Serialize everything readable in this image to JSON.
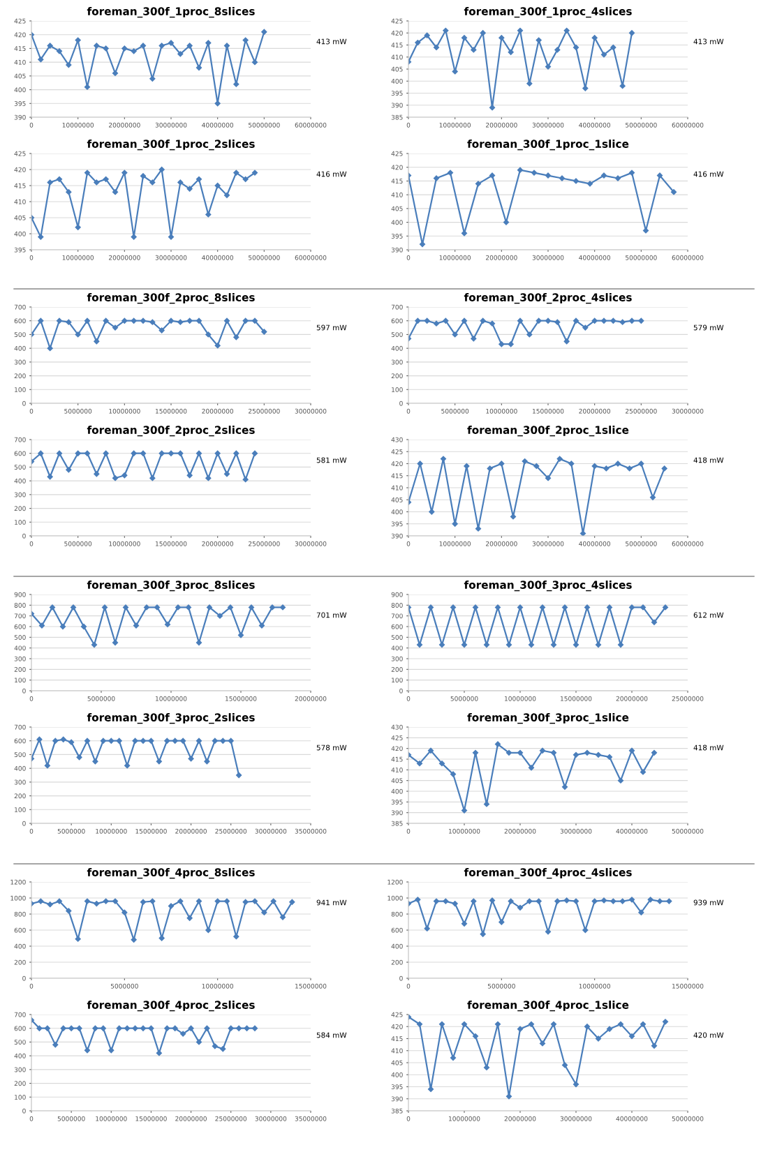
{
  "chart_data": [
    {
      "type": "line",
      "title": "foreman_300f_1proc_8slices",
      "annotations": [
        "413 mW"
      ],
      "xlim": [
        0,
        60000000
      ],
      "xticks": [
        0,
        10000000,
        20000000,
        30000000,
        40000000,
        50000000,
        60000000
      ],
      "ylim": [
        390,
        425
      ],
      "yticks": [
        390,
        395,
        400,
        405,
        410,
        415,
        420,
        425
      ],
      "grid": "y",
      "marker": "diamond",
      "color": "#4a7ebb",
      "x": [
        0,
        2000000,
        4000000,
        6000000,
        8000000,
        10000000,
        12000000,
        14000000,
        16000000,
        18000000,
        20000000,
        22000000,
        24000000,
        26000000,
        28000000,
        30000000,
        32000000,
        34000000,
        36000000,
        38000000,
        40000000,
        42000000,
        44000000,
        46000000,
        48000000,
        50000000
      ],
      "values": [
        420,
        411,
        416,
        414,
        409,
        418,
        401,
        416,
        415,
        406,
        415,
        414,
        416,
        404,
        416,
        417,
        413,
        416,
        408,
        417,
        395,
        416,
        402,
        418,
        410,
        421
      ]
    },
    {
      "type": "line",
      "title": "foreman_300f_1proc_4slices",
      "annotations": [
        "413 mW"
      ],
      "xlim": [
        0,
        60000000
      ],
      "xticks": [
        0,
        10000000,
        20000000,
        30000000,
        40000000,
        50000000,
        60000000
      ],
      "ylim": [
        385,
        425
      ],
      "yticks": [
        385,
        390,
        395,
        400,
        405,
        410,
        415,
        420,
        425
      ],
      "grid": "y",
      "marker": "diamond",
      "color": "#4a7ebb",
      "x": [
        0,
        2000000,
        4000000,
        6000000,
        8000000,
        10000000,
        12000000,
        14000000,
        16000000,
        18000000,
        20000000,
        22000000,
        24000000,
        26000000,
        28000000,
        30000000,
        32000000,
        34000000,
        36000000,
        38000000,
        40000000,
        42000000,
        44000000,
        46000000,
        48000000
      ],
      "values": [
        408,
        416,
        419,
        414,
        421,
        404,
        418,
        413,
        420,
        389,
        418,
        412,
        421,
        399,
        417,
        406,
        413,
        421,
        414,
        397,
        418,
        411,
        414,
        398,
        420
      ]
    },
    {
      "type": "line",
      "title": "foreman_300f_1proc_2slices",
      "annotations": [
        "416 mW"
      ],
      "xlim": [
        0,
        60000000
      ],
      "xticks": [
        0,
        10000000,
        20000000,
        30000000,
        40000000,
        50000000,
        60000000
      ],
      "ylim": [
        395,
        425
      ],
      "yticks": [
        395,
        400,
        405,
        410,
        415,
        420,
        425
      ],
      "grid": "y",
      "marker": "diamond",
      "color": "#4a7ebb",
      "x": [
        0,
        2000000,
        4000000,
        6000000,
        8000000,
        10000000,
        12000000,
        14000000,
        16000000,
        18000000,
        20000000,
        22000000,
        24000000,
        26000000,
        28000000,
        30000000,
        32000000,
        34000000,
        36000000,
        38000000,
        40000000,
        42000000,
        44000000,
        46000000,
        48000000
      ],
      "values": [
        405,
        399,
        416,
        417,
        413,
        402,
        419,
        416,
        417,
        413,
        419,
        399,
        418,
        416,
        420,
        399,
        416,
        414,
        417,
        406,
        415,
        412,
        419,
        417,
        419
      ]
    },
    {
      "type": "line",
      "title": "foreman_300f_1proc_1slice",
      "annotations": [
        "416 mW"
      ],
      "xlim": [
        0,
        60000000
      ],
      "xticks": [
        0,
        10000000,
        20000000,
        30000000,
        40000000,
        50000000,
        60000000
      ],
      "ylim": [
        390,
        425
      ],
      "yticks": [
        390,
        395,
        400,
        405,
        410,
        415,
        420,
        425
      ],
      "grid": "y",
      "marker": "diamond",
      "color": "#4a7ebb",
      "x": [
        0,
        3000000,
        6000000,
        9000000,
        12000000,
        15000000,
        18000000,
        21000000,
        24000000,
        27000000,
        30000000,
        33000000,
        36000000,
        39000000,
        42000000,
        45000000,
        48000000,
        51000000,
        54000000,
        57000000
      ],
      "values": [
        417,
        392,
        416,
        418,
        396,
        414,
        417,
        400,
        419,
        418,
        417,
        416,
        415,
        414,
        417,
        416,
        418,
        397,
        417,
        411
      ]
    },
    {
      "type": "line",
      "title": "foreman_300f_2proc_8slices",
      "annotations": [
        "597 mW"
      ],
      "xlim": [
        0,
        30000000
      ],
      "xticks": [
        0,
        5000000,
        10000000,
        15000000,
        20000000,
        25000000,
        30000000
      ],
      "ylim": [
        0,
        700
      ],
      "yticks": [
        0,
        100,
        200,
        300,
        400,
        500,
        600,
        700
      ],
      "grid": "y",
      "marker": "diamond",
      "color": "#4a7ebb",
      "x": [
        0,
        1000000,
        2000000,
        3000000,
        4000000,
        5000000,
        6000000,
        7000000,
        8000000,
        9000000,
        10000000,
        11000000,
        12000000,
        13000000,
        14000000,
        15000000,
        16000000,
        17000000,
        18000000,
        19000000,
        20000000,
        21000000,
        22000000,
        23000000,
        24000000,
        25000000
      ],
      "values": [
        500,
        600,
        400,
        600,
        590,
        500,
        600,
        450,
        600,
        550,
        600,
        600,
        600,
        590,
        530,
        600,
        590,
        600,
        600,
        500,
        420,
        600,
        480,
        600,
        600,
        520
      ]
    },
    {
      "type": "line",
      "title": "foreman_300f_2proc_4slices",
      "annotations": [
        "579 mW"
      ],
      "xlim": [
        0,
        30000000
      ],
      "xticks": [
        0,
        5000000,
        10000000,
        15000000,
        20000000,
        25000000,
        30000000
      ],
      "ylim": [
        0,
        700
      ],
      "yticks": [
        0,
        100,
        200,
        300,
        400,
        500,
        600,
        700
      ],
      "grid": "y",
      "marker": "diamond",
      "color": "#4a7ebb",
      "x": [
        0,
        1000000,
        2000000,
        3000000,
        4000000,
        5000000,
        6000000,
        7000000,
        8000000,
        9000000,
        10000000,
        11000000,
        12000000,
        13000000,
        14000000,
        15000000,
        16000000,
        17000000,
        18000000,
        19000000,
        20000000,
        21000000,
        22000000,
        23000000,
        24000000,
        25000000
      ],
      "values": [
        470,
        600,
        600,
        580,
        600,
        500,
        600,
        470,
        600,
        580,
        430,
        430,
        600,
        500,
        600,
        600,
        590,
        450,
        600,
        550,
        600,
        600,
        600,
        590,
        600,
        600
      ]
    },
    {
      "type": "line",
      "title": "foreman_300f_2proc_2slices",
      "annotations": [
        "581 mW"
      ],
      "xlim": [
        0,
        30000000
      ],
      "xticks": [
        0,
        5000000,
        10000000,
        15000000,
        20000000,
        25000000,
        30000000
      ],
      "ylim": [
        0,
        700
      ],
      "yticks": [
        0,
        100,
        200,
        300,
        400,
        500,
        600,
        700
      ],
      "grid": "y",
      "marker": "diamond",
      "color": "#4a7ebb",
      "x": [
        0,
        1000000,
        2000000,
        3000000,
        4000000,
        5000000,
        6000000,
        7000000,
        8000000,
        9000000,
        10000000,
        11000000,
        12000000,
        13000000,
        14000000,
        15000000,
        16000000,
        17000000,
        18000000,
        19000000,
        20000000,
        21000000,
        22000000,
        23000000,
        24000000
      ],
      "values": [
        540,
        600,
        430,
        600,
        480,
        600,
        600,
        450,
        600,
        420,
        440,
        600,
        600,
        420,
        600,
        600,
        600,
        440,
        600,
        420,
        600,
        450,
        600,
        410,
        600
      ]
    },
    {
      "type": "line",
      "title": "foreman_300f_2proc_1slice",
      "annotations": [
        "418 mW"
      ],
      "xlim": [
        0,
        60000000
      ],
      "xticks": [
        0,
        10000000,
        20000000,
        30000000,
        40000000,
        50000000,
        60000000
      ],
      "ylim": [
        390,
        430
      ],
      "yticks": [
        390,
        395,
        400,
        405,
        410,
        415,
        420,
        425,
        430
      ],
      "grid": "y",
      "marker": "diamond",
      "color": "#4a7ebb",
      "x": [
        0,
        2500000,
        5000000,
        7500000,
        10000000,
        12500000,
        15000000,
        17500000,
        20000000,
        22500000,
        25000000,
        27500000,
        30000000,
        32500000,
        35000000,
        37500000,
        40000000,
        42500000,
        45000000,
        47500000,
        50000000,
        52500000,
        55000000
      ],
      "values": [
        404,
        420,
        400,
        422,
        395,
        419,
        393,
        418,
        420,
        398,
        421,
        419,
        414,
        422,
        420,
        391,
        419,
        418,
        420,
        418,
        420,
        406,
        418
      ]
    },
    {
      "type": "line",
      "title": "foreman_300f_3proc_8slices",
      "annotations": [
        "701 mW"
      ],
      "xlim": [
        0,
        20000000
      ],
      "xticks": [
        0,
        5000000,
        10000000,
        15000000,
        20000000
      ],
      "ylim": [
        0,
        900
      ],
      "yticks": [
        0,
        100,
        200,
        300,
        400,
        500,
        600,
        700,
        800,
        900
      ],
      "grid": "y",
      "marker": "diamond",
      "color": "#4a7ebb",
      "x": [
        0,
        750000,
        1500000,
        2250000,
        3000000,
        3750000,
        4500000,
        5250000,
        6000000,
        6750000,
        7500000,
        8250000,
        9000000,
        9750000,
        10500000,
        11250000,
        12000000,
        12750000,
        13500000,
        14250000,
        15000000,
        15750000,
        16500000,
        17250000,
        18000000
      ],
      "values": [
        720,
        610,
        780,
        600,
        780,
        600,
        430,
        780,
        450,
        780,
        610,
        780,
        780,
        620,
        780,
        780,
        450,
        780,
        700,
        780,
        520,
        780,
        610,
        780,
        780
      ]
    },
    {
      "type": "line",
      "title": "foreman_300f_3proc_4slices",
      "annotations": [
        "612 mW"
      ],
      "xlim": [
        0,
        25000000
      ],
      "xticks": [
        0,
        5000000,
        10000000,
        15000000,
        20000000,
        25000000
      ],
      "ylim": [
        0,
        900
      ],
      "yticks": [
        0,
        100,
        200,
        300,
        400,
        500,
        600,
        700,
        800,
        900
      ],
      "grid": "y",
      "marker": "diamond",
      "color": "#4a7ebb",
      "x": [
        0,
        1000000,
        2000000,
        3000000,
        4000000,
        5000000,
        6000000,
        7000000,
        8000000,
        9000000,
        10000000,
        11000000,
        12000000,
        13000000,
        14000000,
        15000000,
        16000000,
        17000000,
        18000000,
        19000000,
        20000000,
        21000000,
        22000000,
        23000000
      ],
      "values": [
        780,
        430,
        780,
        430,
        780,
        430,
        780,
        430,
        780,
        430,
        780,
        430,
        780,
        430,
        780,
        430,
        780,
        430,
        780,
        430,
        780,
        780,
        640,
        780
      ]
    },
    {
      "type": "line",
      "title": "foreman_300f_3proc_2slices",
      "annotations": [
        "578 mW"
      ],
      "xlim": [
        0,
        35000000
      ],
      "xticks": [
        0,
        5000000,
        10000000,
        15000000,
        20000000,
        25000000,
        30000000,
        35000000
      ],
      "ylim": [
        0,
        700
      ],
      "yticks": [
        0,
        100,
        200,
        300,
        400,
        500,
        600,
        700
      ],
      "grid": "y",
      "marker": "diamond",
      "color": "#4a7ebb",
      "x": [
        0,
        1000000,
        2000000,
        3000000,
        4000000,
        5000000,
        6000000,
        7000000,
        8000000,
        9000000,
        10000000,
        11000000,
        12000000,
        13000000,
        14000000,
        15000000,
        16000000,
        17000000,
        18000000,
        19000000,
        20000000,
        21000000,
        22000000,
        23000000,
        24000000,
        25000000,
        26000000
      ],
      "values": [
        470,
        610,
        420,
        600,
        610,
        590,
        480,
        600,
        450,
        600,
        600,
        600,
        420,
        600,
        600,
        600,
        450,
        600,
        600,
        600,
        470,
        600,
        450,
        600,
        600,
        600,
        350
      ]
    },
    {
      "type": "line",
      "title": "foreman_300f_3proc_1slice",
      "annotations": [
        "418 mW"
      ],
      "xlim": [
        0,
        50000000
      ],
      "xticks": [
        0,
        10000000,
        20000000,
        30000000,
        40000000,
        50000000
      ],
      "ylim": [
        385,
        430
      ],
      "yticks": [
        385,
        390,
        395,
        400,
        405,
        410,
        415,
        420,
        425,
        430
      ],
      "grid": "y",
      "marker": "diamond",
      "color": "#4a7ebb",
      "x": [
        0,
        2000000,
        4000000,
        6000000,
        8000000,
        10000000,
        12000000,
        14000000,
        16000000,
        18000000,
        20000000,
        22000000,
        24000000,
        26000000,
        28000000,
        30000000,
        32000000,
        34000000,
        36000000,
        38000000,
        40000000,
        42000000,
        44000000
      ],
      "values": [
        417,
        413,
        419,
        413,
        408,
        391,
        418,
        394,
        422,
        418,
        418,
        411,
        419,
        418,
        402,
        417,
        418,
        417,
        416,
        405,
        419,
        409,
        418
      ]
    },
    {
      "type": "line",
      "title": "foreman_300f_4proc_8slices",
      "annotations": [
        "941 mW"
      ],
      "xlim": [
        0,
        15000000
      ],
      "xticks": [
        0,
        5000000,
        10000000,
        15000000
      ],
      "ylim": [
        0,
        1200
      ],
      "yticks": [
        0,
        200,
        400,
        600,
        800,
        1000,
        1200
      ],
      "grid": "y",
      "marker": "diamond",
      "color": "#4a7ebb",
      "x": [
        0,
        500000,
        1000000,
        1500000,
        2000000,
        2500000,
        3000000,
        3500000,
        4000000,
        4500000,
        5000000,
        5500000,
        6000000,
        6500000,
        7000000,
        7500000,
        8000000,
        8500000,
        9000000,
        9500000,
        10000000,
        10500000,
        11000000,
        11500000,
        12000000,
        12500000,
        13000000,
        13500000,
        14000000
      ],
      "values": [
        930,
        960,
        920,
        960,
        840,
        490,
        960,
        930,
        960,
        960,
        820,
        480,
        950,
        960,
        500,
        900,
        960,
        750,
        960,
        600,
        960,
        960,
        520,
        950,
        960,
        820,
        960,
        760,
        950
      ]
    },
    {
      "type": "line",
      "title": "foreman_300f_4proc_4slices",
      "annotations": [
        "939 mW"
      ],
      "xlim": [
        0,
        15000000
      ],
      "xticks": [
        0,
        5000000,
        10000000,
        15000000
      ],
      "ylim": [
        0,
        1200
      ],
      "yticks": [
        0,
        200,
        400,
        600,
        800,
        1000,
        1200
      ],
      "grid": "y",
      "marker": "diamond",
      "color": "#4a7ebb",
      "x": [
        0,
        500000,
        1000000,
        1500000,
        2000000,
        2500000,
        3000000,
        3500000,
        4000000,
        4500000,
        5000000,
        5500000,
        6000000,
        6500000,
        7000000,
        7500000,
        8000000,
        8500000,
        9000000,
        9500000,
        10000000,
        10500000,
        11000000,
        11500000,
        12000000,
        12500000,
        13000000,
        13500000,
        14000000
      ],
      "values": [
        930,
        980,
        620,
        960,
        960,
        930,
        680,
        960,
        550,
        970,
        700,
        960,
        880,
        960,
        960,
        580,
        960,
        970,
        960,
        600,
        960,
        970,
        960,
        960,
        980,
        820,
        980,
        960,
        960
      ]
    },
    {
      "type": "line",
      "title": "foreman_300f_4proc_2slices",
      "annotations": [
        "584 mW"
      ],
      "xlim": [
        0,
        35000000
      ],
      "xticks": [
        0,
        5000000,
        10000000,
        15000000,
        20000000,
        25000000,
        30000000,
        35000000
      ],
      "ylim": [
        0,
        700
      ],
      "yticks": [
        0,
        100,
        200,
        300,
        400,
        500,
        600,
        700
      ],
      "grid": "y",
      "marker": "diamond",
      "color": "#4a7ebb",
      "x": [
        0,
        1000000,
        2000000,
        3000000,
        4000000,
        5000000,
        6000000,
        7000000,
        8000000,
        9000000,
        10000000,
        11000000,
        12000000,
        13000000,
        14000000,
        15000000,
        16000000,
        17000000,
        18000000,
        19000000,
        20000000,
        21000000,
        22000000,
        23000000,
        24000000,
        25000000,
        26000000,
        27000000,
        28000000
      ],
      "values": [
        660,
        600,
        600,
        480,
        600,
        600,
        600,
        440,
        600,
        600,
        440,
        600,
        600,
        600,
        600,
        600,
        420,
        600,
        600,
        560,
        600,
        500,
        600,
        470,
        450,
        600,
        600,
        600,
        600
      ]
    },
    {
      "type": "line",
      "title": "foreman_300f_4proc_1slice",
      "annotations": [
        "420 mW"
      ],
      "xlim": [
        0,
        50000000
      ],
      "xticks": [
        0,
        10000000,
        20000000,
        30000000,
        40000000,
        50000000
      ],
      "ylim": [
        385,
        425
      ],
      "yticks": [
        385,
        390,
        395,
        400,
        405,
        410,
        415,
        420,
        425
      ],
      "grid": "y",
      "marker": "diamond",
      "color": "#4a7ebb",
      "x": [
        0,
        2000000,
        4000000,
        6000000,
        8000000,
        10000000,
        12000000,
        14000000,
        16000000,
        18000000,
        20000000,
        22000000,
        24000000,
        26000000,
        28000000,
        30000000,
        32000000,
        34000000,
        36000000,
        38000000,
        40000000,
        42000000,
        44000000,
        46000000
      ],
      "values": [
        424,
        421,
        394,
        421,
        407,
        421,
        416,
        403,
        421,
        391,
        419,
        421,
        413,
        421,
        404,
        396,
        420,
        415,
        419,
        421,
        416,
        421,
        412,
        422
      ]
    }
  ]
}
